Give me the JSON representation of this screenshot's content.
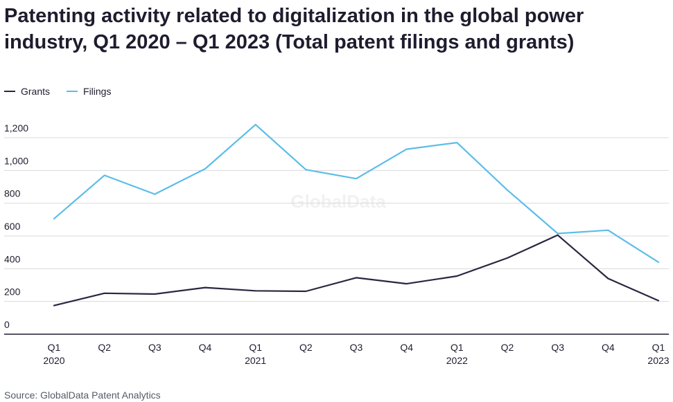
{
  "title": "Patenting activity related to digitalization in the global power industry, Q1 2020 – Q1 2023 (Total patent filings and grants)",
  "source": "Source: GlobalData Patent Analytics",
  "watermark": "GlobalData",
  "colors": {
    "grants": "#2a2541",
    "filings": "#5bbde8",
    "grid": "#d9d9d9",
    "axis": "#1f1c2e"
  },
  "chart_data": {
    "type": "line",
    "categories": [
      [
        "Q1",
        "2020"
      ],
      [
        "Q2",
        ""
      ],
      [
        "Q3",
        ""
      ],
      [
        "Q4",
        ""
      ],
      [
        "Q1",
        "2021"
      ],
      [
        "Q2",
        ""
      ],
      [
        "Q3",
        ""
      ],
      [
        "Q4",
        ""
      ],
      [
        "Q1",
        "2022"
      ],
      [
        "Q2",
        ""
      ],
      [
        "Q3",
        ""
      ],
      [
        "Q4",
        ""
      ],
      [
        "Q1",
        "2023"
      ]
    ],
    "series": [
      {
        "name": "Grants",
        "color": "#2a2541",
        "values": [
          175,
          250,
          245,
          285,
          265,
          262,
          345,
          308,
          355,
          465,
          605,
          340,
          205
        ]
      },
      {
        "name": "Filings",
        "color": "#5bbde8",
        "values": [
          705,
          970,
          855,
          1010,
          1280,
          1005,
          950,
          1130,
          1170,
          880,
          615,
          635,
          440
        ]
      }
    ],
    "yticks": [
      0,
      200,
      400,
      600,
      800,
      1000,
      1200
    ],
    "ytick_labels": [
      "0",
      "200",
      "400",
      "600",
      "800",
      "1,000",
      "1,200"
    ],
    "ylim": [
      0,
      1200
    ],
    "legend_position": "top-left",
    "grid": true
  }
}
